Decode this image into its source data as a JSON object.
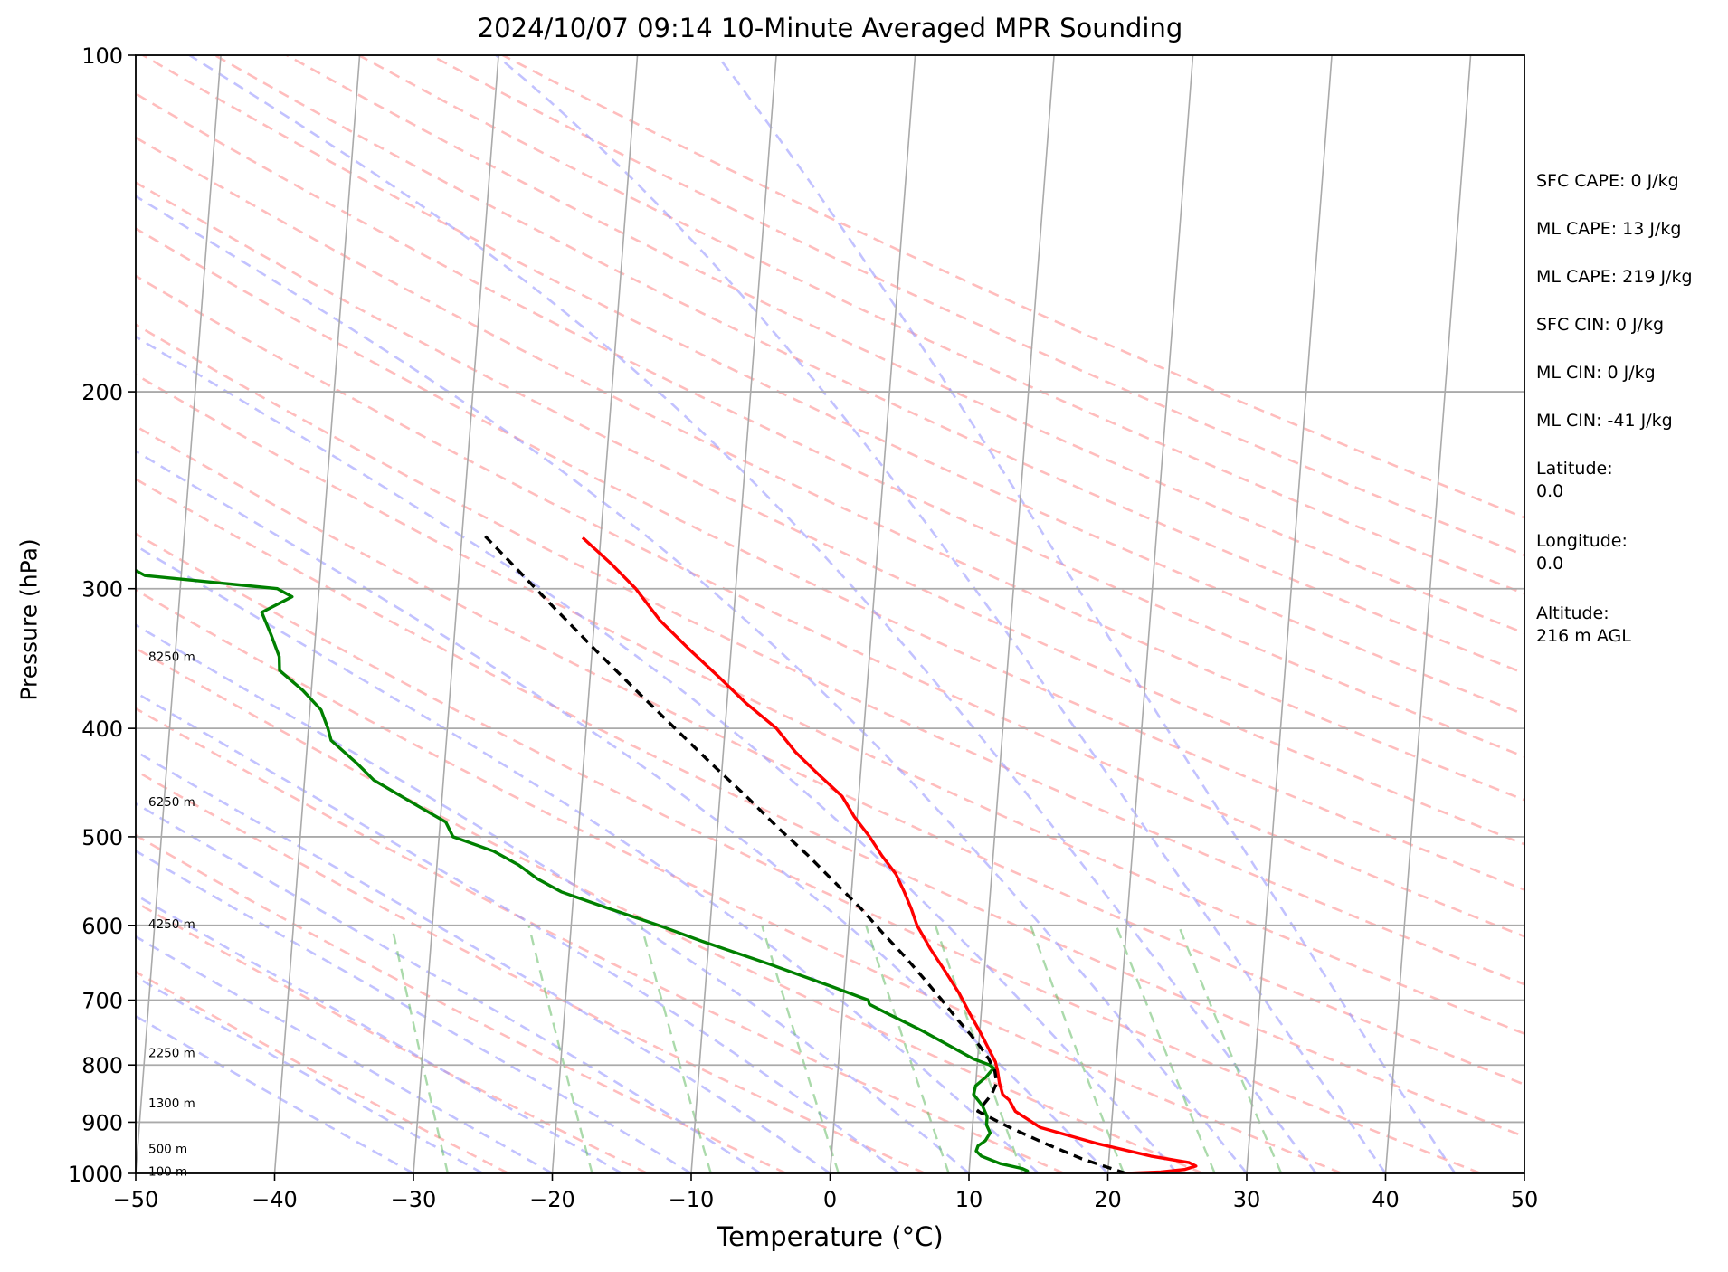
{
  "chart_data": {
    "type": "line",
    "title": "2024/10/07 09:14 10-Minute Averaged MPR Sounding",
    "xlabel": "Temperature (°C)",
    "ylabel": "Pressure (hPa)",
    "xlim": [
      -50,
      50
    ],
    "ylim": [
      1000,
      100
    ],
    "y_scale": "log",
    "skew": "skew-T",
    "x_ticks": [
      "−50",
      "−40",
      "−30",
      "−20",
      "−10",
      "0",
      "10",
      "20",
      "30",
      "40",
      "50"
    ],
    "y_ticks": [
      "100",
      "200",
      "300",
      "400",
      "500",
      "600",
      "700",
      "800",
      "900",
      "1000"
    ],
    "height_labels": [
      {
        "p": 995,
        "label": "100 m"
      },
      {
        "p": 950,
        "label": "500 m"
      },
      {
        "p": 865,
        "label": "1300 m"
      },
      {
        "p": 780,
        "label": "2250 m"
      },
      {
        "p": 598,
        "label": "4250 m"
      },
      {
        "p": 465,
        "label": "6250 m"
      },
      {
        "p": 345,
        "label": "8250 m"
      }
    ],
    "series": [
      {
        "name": "",
        "color": "#ff0000",
        "points": [
          [
            1000,
            21.3
          ],
          [
            997,
            23.8
          ],
          [
            992,
            25.5
          ],
          [
            985,
            26.3
          ],
          [
            978,
            25.8
          ],
          [
            965,
            23.0
          ],
          [
            940,
            19.0
          ],
          [
            910,
            14.9
          ],
          [
            880,
            13.0
          ],
          [
            860,
            12.5
          ],
          [
            850,
            12.0
          ],
          [
            830,
            11.7
          ],
          [
            810,
            11.5
          ],
          [
            795,
            11.3
          ],
          [
            780,
            10.9
          ],
          [
            750,
            10.1
          ],
          [
            720,
            9.2
          ],
          [
            690,
            8.3
          ],
          [
            660,
            7.2
          ],
          [
            630,
            6.0
          ],
          [
            600,
            4.9
          ],
          [
            580,
            4.4
          ],
          [
            560,
            3.8
          ],
          [
            540,
            3.1
          ],
          [
            520,
            2.0
          ],
          [
            500,
            1.0
          ],
          [
            480,
            -0.2
          ],
          [
            460,
            -1.2
          ],
          [
            440,
            -3.0
          ],
          [
            420,
            -4.8
          ],
          [
            400,
            -6.3
          ],
          [
            380,
            -8.6
          ],
          [
            360,
            -10.7
          ],
          [
            340,
            -13.0
          ],
          [
            320,
            -15.3
          ],
          [
            300,
            -17.2
          ],
          [
            285,
            -19.1
          ],
          [
            270,
            -21.3
          ]
        ]
      },
      {
        "name": "",
        "color": "#008000",
        "points": [
          [
            1000,
            14.0
          ],
          [
            995,
            14.2
          ],
          [
            990,
            13.8
          ],
          [
            980,
            12.2
          ],
          [
            965,
            10.8
          ],
          [
            955,
            10.4
          ],
          [
            945,
            10.5
          ],
          [
            935,
            11.0
          ],
          [
            920,
            11.3
          ],
          [
            905,
            11.0
          ],
          [
            890,
            11.0
          ],
          [
            870,
            10.6
          ],
          [
            850,
            9.9
          ],
          [
            835,
            10.0
          ],
          [
            820,
            10.7
          ],
          [
            805,
            11.2
          ],
          [
            800,
            10.9
          ],
          [
            790,
            9.7
          ],
          [
            770,
            8.0
          ],
          [
            745,
            5.8
          ],
          [
            720,
            3.3
          ],
          [
            706,
            1.9
          ],
          [
            700,
            1.8
          ],
          [
            680,
            -1.0
          ],
          [
            650,
            -5.5
          ],
          [
            620,
            -10.5
          ],
          [
            600,
            -13.7
          ],
          [
            580,
            -17.3
          ],
          [
            560,
            -20.9
          ],
          [
            545,
            -22.7
          ],
          [
            530,
            -24.1
          ],
          [
            515,
            -26.0
          ],
          [
            500,
            -29.0
          ],
          [
            485,
            -29.6
          ],
          [
            470,
            -31.6
          ],
          [
            445,
            -35.0
          ],
          [
            430,
            -36.3
          ],
          [
            410,
            -38.3
          ],
          [
            400,
            -38.6
          ],
          [
            385,
            -39.2
          ],
          [
            370,
            -40.6
          ],
          [
            355,
            -42.4
          ],
          [
            345,
            -42.5
          ],
          [
            330,
            -43.2
          ],
          [
            315,
            -44.0
          ],
          [
            305,
            -41.9
          ],
          [
            300,
            -43.0
          ],
          [
            292,
            -52.6
          ],
          [
            282,
            -55.0
          ],
          [
            275,
            -62.7
          ]
        ]
      },
      {
        "name": "",
        "color": "#000000",
        "dashed": true,
        "points": [
          [
            1000,
            21.3
          ],
          [
            970,
            18.0
          ],
          [
            940,
            15.3
          ],
          [
            910,
            12.7
          ],
          [
            880,
            10.3
          ],
          [
            860,
            10.9
          ],
          [
            850,
            11.2
          ],
          [
            830,
            11.5
          ],
          [
            810,
            11.3
          ],
          [
            790,
            10.8
          ],
          [
            770,
            10.1
          ],
          [
            750,
            9.3
          ],
          [
            730,
            8.4
          ],
          [
            700,
            7.1
          ],
          [
            670,
            5.7
          ],
          [
            640,
            4.2
          ],
          [
            610,
            2.5
          ],
          [
            580,
            0.8
          ],
          [
            550,
            -1.2
          ],
          [
            520,
            -3.3
          ],
          [
            490,
            -5.7
          ],
          [
            460,
            -8.1
          ],
          [
            430,
            -10.8
          ],
          [
            400,
            -13.6
          ],
          [
            370,
            -16.6
          ],
          [
            340,
            -19.8
          ],
          [
            310,
            -23.2
          ],
          [
            280,
            -26.9
          ],
          [
            268,
            -28.5
          ]
        ]
      }
    ],
    "info": [
      [
        "SFC CAPE: 0 J/kg"
      ],
      [
        "ML CAPE: 13 J/kg"
      ],
      [
        "ML CAPE: 219 J/kg"
      ],
      [
        "SFC CIN: 0 J/kg"
      ],
      [
        "ML CIN: 0 J/kg"
      ],
      [
        "ML CIN: -41 J/kg"
      ],
      [
        "Latitude:",
        "0.0"
      ],
      [
        "Longitude:",
        "0.0"
      ],
      [
        "Altitude:",
        "216 m AGL"
      ]
    ]
  }
}
